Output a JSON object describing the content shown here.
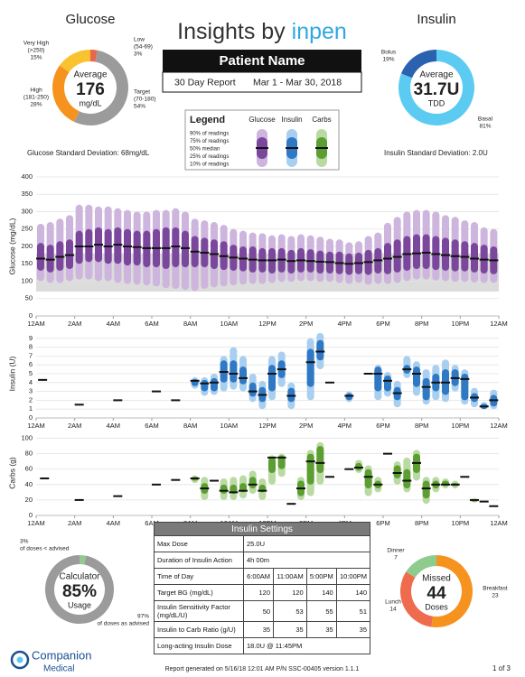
{
  "header": {
    "title": "Insights by",
    "brand": "inpen",
    "patient": "Patient Name",
    "report": "30 Day Report",
    "dates": "Mar 1 - Mar 30, 2018"
  },
  "legend": {
    "title": "Legend",
    "rows": [
      "90% of readings",
      "75% of readings",
      "50% median",
      "25% of readings",
      "10% of readings"
    ],
    "columns": [
      "Glucose",
      "Insulin",
      "Carbs"
    ]
  },
  "glucose_sd": "Glucose Standard Deviation: 68mg/dL",
  "insulin_sd": "Insulin Standard Deviation: 2.0U",
  "chart_data": [
    {
      "type": "donut",
      "title": "Glucose",
      "center": [
        "Average",
        "176",
        "mg/dL"
      ],
      "categories": [
        "Low",
        "Target",
        "High",
        "Very High"
      ],
      "ranges": [
        "(54-69)",
        "(70-180)",
        "(181-250)",
        "(>250)"
      ],
      "values": [
        3,
        54,
        28,
        15
      ],
      "value_labels": [
        "3%",
        "54%",
        "28%",
        "15%"
      ],
      "colors": [
        "#e8664a",
        "#9b9b9b",
        "#f6931f",
        "#f9c22e"
      ]
    },
    {
      "type": "donut",
      "title": "Insulin",
      "center": [
        "Average",
        "31.7U",
        "TDD"
      ],
      "categories": [
        "Bolus",
        "Basal"
      ],
      "values": [
        19,
        81
      ],
      "value_labels": [
        "19%",
        "81%"
      ],
      "colors": [
        "#2a62b0",
        "#5ccbf1"
      ]
    },
    {
      "type": "range",
      "ylabel": "Glucose (mg/dL)",
      "x": [
        0,
        0.5,
        1,
        1.5,
        2,
        2.5,
        3,
        3.5,
        4,
        4.5,
        5,
        5.5,
        6,
        6.5,
        7,
        7.5,
        8,
        8.5,
        9,
        9.5,
        10,
        10.5,
        11,
        11.5,
        12,
        12.5,
        13,
        13.5,
        14,
        14.5,
        15,
        15.5,
        16,
        16.5,
        17,
        17.5,
        18,
        18.5,
        19,
        19.5,
        20,
        20.5,
        21,
        21.5,
        22,
        22.5,
        23,
        23.5
      ],
      "p10": [
        100,
        95,
        95,
        100,
        105,
        105,
        100,
        100,
        95,
        92,
        90,
        88,
        85,
        80,
        78,
        75,
        72,
        78,
        82,
        85,
        88,
        90,
        92,
        92,
        95,
        98,
        98,
        100,
        100,
        98,
        98,
        95,
        92,
        95,
        90,
        92,
        92,
        95,
        100,
        105,
        105,
        102,
        100,
        98,
        98,
        96,
        95,
        95
      ],
      "p25": [
        130,
        125,
        130,
        135,
        150,
        155,
        155,
        150,
        150,
        145,
        145,
        140,
        140,
        135,
        140,
        140,
        140,
        140,
        135,
        132,
        130,
        128,
        125,
        125,
        122,
        125,
        122,
        125,
        125,
        122,
        122,
        120,
        118,
        120,
        118,
        122,
        120,
        125,
        130,
        135,
        135,
        132,
        130,
        128,
        128,
        125,
        122,
        120
      ],
      "p50": [
        165,
        162,
        170,
        175,
        200,
        200,
        205,
        200,
        205,
        200,
        198,
        195,
        195,
        195,
        200,
        195,
        185,
        182,
        178,
        172,
        168,
        165,
        162,
        160,
        160,
        162,
        158,
        160,
        158,
        156,
        155,
        152,
        150,
        152,
        155,
        160,
        165,
        170,
        178,
        180,
        182,
        178,
        175,
        172,
        170,
        165,
        162,
        160
      ],
      "p75": [
        210,
        205,
        215,
        220,
        245,
        250,
        255,
        250,
        255,
        250,
        245,
        245,
        250,
        255,
        255,
        245,
        230,
        225,
        220,
        215,
        205,
        200,
        200,
        195,
        195,
        195,
        190,
        195,
        192,
        188,
        185,
        185,
        180,
        182,
        190,
        195,
        210,
        220,
        230,
        235,
        235,
        230,
        225,
        220,
        215,
        210,
        205,
        200
      ],
      "p90": [
        265,
        270,
        280,
        290,
        320,
        320,
        315,
        315,
        310,
        305,
        300,
        300,
        305,
        305,
        310,
        300,
        280,
        275,
        270,
        262,
        250,
        245,
        240,
        238,
        232,
        235,
        230,
        235,
        232,
        228,
        222,
        220,
        212,
        215,
        230,
        240,
        268,
        285,
        300,
        305,
        305,
        300,
        290,
        285,
        275,
        270,
        255,
        250
      ],
      "target": [
        70,
        180
      ],
      "xlim": [
        0,
        24
      ],
      "xticks": [
        {
          "value": 0,
          "label": "12AM"
        },
        {
          "value": 2,
          "label": "2AM"
        },
        {
          "value": 4,
          "label": "4AM"
        },
        {
          "value": 6,
          "label": "6AM"
        },
        {
          "value": 8,
          "label": "8AM"
        },
        {
          "value": 10,
          "label": "10AM"
        },
        {
          "value": 12,
          "label": "12PM"
        },
        {
          "value": 14,
          "label": "2PM"
        },
        {
          "value": 16,
          "label": "4PM"
        },
        {
          "value": 18,
          "label": "6PM"
        },
        {
          "value": 20,
          "label": "8PM"
        },
        {
          "value": 22,
          "label": "10PM"
        },
        {
          "value": 24,
          "label": "12AM"
        }
      ],
      "ylim": [
        0,
        400
      ],
      "yticks": [
        0,
        50,
        100,
        150,
        200,
        250,
        300,
        350,
        400
      ],
      "grid": true,
      "colors": {
        "outer": "#cdb5dd",
        "inner": "#7a479c",
        "median": "#111111",
        "target": "#dcdcdc"
      }
    },
    {
      "type": "range",
      "ylabel": "Insulin (U)",
      "x": [
        0.1,
        2,
        4,
        6,
        7,
        8,
        8.5,
        9,
        9.5,
        10,
        10.5,
        11,
        11.5,
        12,
        12.5,
        13,
        14,
        14.5,
        15,
        16,
        17,
        17.5,
        18,
        18.5,
        19,
        19.5,
        20,
        20.5,
        21,
        21.5,
        22,
        22.5,
        23,
        23.5
      ],
      "p10": [
        4.3,
        1.5,
        2,
        3,
        2,
        3.3,
        2.5,
        2.6,
        3,
        3.2,
        3,
        1.8,
        1,
        2,
        3.5,
        1,
        2,
        5.5,
        4,
        1.8,
        5,
        2,
        2.4,
        1.2,
        4.5,
        2.5,
        1.5,
        2,
        1.8,
        3,
        1.5,
        1.2,
        1,
        1
      ],
      "p25": [
        4.3,
        1.5,
        2,
        3,
        2,
        3.6,
        3,
        3,
        4,
        4,
        3.8,
        2.4,
        1.8,
        3,
        4.5,
        1.8,
        3.5,
        6.5,
        4,
        2,
        5,
        3,
        3,
        2,
        5,
        3.5,
        2,
        3,
        2.6,
        3.6,
        2,
        1.8,
        1,
        1.3
      ],
      "p50": [
        4.3,
        1.5,
        2,
        3,
        2,
        4.2,
        3.9,
        4,
        5.2,
        5,
        4.5,
        3,
        2.6,
        5,
        5.5,
        2.5,
        6.3,
        7.5,
        4,
        2.5,
        5,
        5,
        4.2,
        2.8,
        5.5,
        5,
        3.5,
        4,
        4,
        4.5,
        4.4,
        2.3,
        1.3,
        2
      ],
      "p75": [
        4.3,
        1.5,
        2,
        3,
        2,
        4.4,
        4.3,
        4.5,
        6.5,
        6.5,
        5.8,
        4,
        3.5,
        6,
        6.5,
        3.4,
        7.8,
        8.8,
        4,
        2.8,
        5,
        5.8,
        4.8,
        3.5,
        6,
        5.8,
        4.5,
        5,
        5.5,
        5.5,
        5,
        2.8,
        1.6,
        2.6
      ],
      "p90": [
        4.3,
        1.5,
        2,
        3,
        2,
        4.6,
        4.6,
        5,
        7,
        8,
        7,
        5,
        4.2,
        7,
        7.5,
        4,
        9,
        9.6,
        4,
        3,
        5,
        6,
        5.2,
        4.2,
        7,
        6.4,
        5.5,
        6,
        6.6,
        6,
        5.5,
        3.4,
        1.8,
        3.2
      ],
      "xlim": [
        0,
        24
      ],
      "xticks": [
        {
          "value": 0,
          "label": "12AM"
        },
        {
          "value": 2,
          "label": "2AM"
        },
        {
          "value": 4,
          "label": "4AM"
        },
        {
          "value": 6,
          "label": "6AM"
        },
        {
          "value": 8,
          "label": "8AM"
        },
        {
          "value": 10,
          "label": "10AM"
        },
        {
          "value": 12,
          "label": "12PM"
        },
        {
          "value": 14,
          "label": "2PM"
        },
        {
          "value": 16,
          "label": "4PM"
        },
        {
          "value": 18,
          "label": "6PM"
        },
        {
          "value": 20,
          "label": "8PM"
        },
        {
          "value": 22,
          "label": "10PM"
        },
        {
          "value": 24,
          "label": "12AM"
        }
      ],
      "ylim": [
        0,
        10
      ],
      "yticks": [
        0,
        1,
        2,
        3,
        4,
        5,
        6,
        7,
        8,
        9
      ],
      "grid": true,
      "colors": {
        "outer": "#a9cff0",
        "inner": "#2f78c3",
        "median": "#111111"
      }
    },
    {
      "type": "range",
      "ylabel": "Carbs (g)",
      "x": [
        0.2,
        2,
        4,
        6,
        7,
        8,
        8.5,
        9,
        9.5,
        10,
        10.5,
        11,
        11.5,
        12,
        12.5,
        13,
        13.5,
        14,
        14.5,
        15,
        16,
        16.5,
        17,
        17.5,
        18,
        18.5,
        19,
        19.5,
        20,
        20.5,
        21,
        21.5,
        22,
        22.5,
        23,
        23.5
      ],
      "p10": [
        48,
        20,
        25,
        40,
        46,
        42,
        20,
        45,
        20,
        20,
        22,
        28,
        20,
        40,
        50,
        15,
        20,
        25,
        40,
        50,
        60,
        55,
        25,
        30,
        80,
        40,
        30,
        45,
        15,
        30,
        35,
        35,
        50,
        17,
        18,
        12
      ],
      "p25": [
        48,
        20,
        25,
        40,
        46,
        45,
        28,
        45,
        28,
        28,
        30,
        35,
        30,
        55,
        60,
        15,
        25,
        40,
        55,
        50,
        60,
        58,
        35,
        35,
        80,
        48,
        35,
        55,
        22,
        35,
        38,
        38,
        50,
        18,
        18,
        12
      ],
      "p50": [
        48,
        20,
        25,
        40,
        46,
        48,
        35,
        45,
        32,
        30,
        32,
        40,
        32,
        75,
        75,
        15,
        35,
        70,
        68,
        50,
        60,
        62,
        50,
        40,
        80,
        55,
        45,
        68,
        35,
        40,
        40,
        40,
        50,
        20,
        18,
        12
      ],
      "p75": [
        48,
        20,
        25,
        40,
        46,
        50,
        42,
        45,
        40,
        40,
        42,
        50,
        40,
        75,
        78,
        15,
        45,
        80,
        90,
        50,
        60,
        68,
        60,
        45,
        80,
        65,
        60,
        80,
        45,
        45,
        45,
        42,
        50,
        20,
        18,
        12
      ],
      "p90": [
        48,
        20,
        25,
        40,
        46,
        52,
        50,
        45,
        48,
        50,
        52,
        58,
        48,
        78,
        80,
        15,
        50,
        85,
        95,
        50,
        60,
        72,
        65,
        50,
        80,
        70,
        75,
        85,
        50,
        50,
        48,
        45,
        50,
        22,
        18,
        12
      ],
      "xlim": [
        0,
        24
      ],
      "xticks": [
        {
          "value": 0,
          "label": "12AM"
        },
        {
          "value": 2,
          "label": "2AM"
        },
        {
          "value": 4,
          "label": "4AM"
        },
        {
          "value": 6,
          "label": "6AM"
        },
        {
          "value": 8,
          "label": "8AM"
        },
        {
          "value": 10,
          "label": "10AM"
        },
        {
          "value": 12,
          "label": "12PM"
        },
        {
          "value": 14,
          "label": "2PM"
        },
        {
          "value": 16,
          "label": "4PM"
        },
        {
          "value": 18,
          "label": "6PM"
        },
        {
          "value": 20,
          "label": "8PM"
        },
        {
          "value": 22,
          "label": "10PM"
        },
        {
          "value": 24,
          "label": "12AM"
        }
      ],
      "ylim": [
        0,
        110
      ],
      "yticks": [
        0,
        20,
        40,
        60,
        80,
        100
      ],
      "grid": true,
      "colors": {
        "outer": "#b9daa2",
        "inner": "#5c9e31",
        "median": "#111111"
      }
    },
    {
      "type": "donut",
      "center": [
        "Calculator",
        "85%",
        "Usage"
      ],
      "categories": [
        "of doses < advised",
        "of doses as advised"
      ],
      "values": [
        3,
        97
      ],
      "value_labels": [
        "3%",
        "97%"
      ],
      "colors": [
        "#8fcb8d",
        "#9b9b9b"
      ]
    },
    {
      "type": "donut",
      "center": [
        "Missed",
        "44",
        "Doses"
      ],
      "categories": [
        "Breakfast",
        "Lunch",
        "Dinner"
      ],
      "values": [
        23,
        14,
        7
      ],
      "value_labels": [
        "23",
        "14",
        "7"
      ],
      "colors": [
        "#f6931f",
        "#ee6b4d",
        "#8fcb8d"
      ]
    }
  ],
  "table": {
    "title": "Insulin Settings",
    "rows": [
      [
        "Max Dose",
        "25.0U"
      ],
      [
        "Duration of Insulin Action",
        "4h 00m"
      ],
      [
        "Time of Day",
        "6:00AM",
        "11:00AM",
        "5:00PM",
        "10:00PM"
      ],
      [
        "Target BG (mg/dL)",
        "120",
        "120",
        "140",
        "140"
      ],
      [
        "Insulin Sensitivity Factor (mg/dL/U)",
        "50",
        "53",
        "55",
        "51"
      ],
      [
        "Insulin to Carb Ratio (g/U)",
        "35",
        "35",
        "35",
        "35"
      ],
      [
        "Long-acting Insulin Dose",
        "18.0U @ 11:45PM"
      ]
    ]
  },
  "footer": {
    "company": [
      "Companion",
      "Medical"
    ],
    "generated": "Report generated on 5/16/18 12:01 AM P/N SSC-00405 version 1.1.1",
    "page": "1 of 3"
  }
}
